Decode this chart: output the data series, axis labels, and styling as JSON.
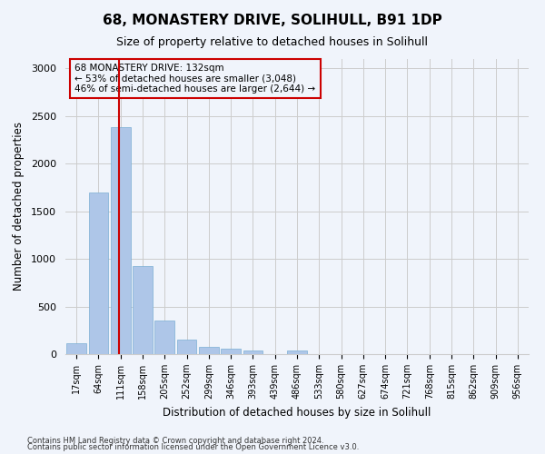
{
  "title": "68, MONASTERY DRIVE, SOLIHULL, B91 1DP",
  "subtitle": "Size of property relative to detached houses in Solihull",
  "xlabel": "Distribution of detached houses by size in Solihull",
  "ylabel": "Number of detached properties",
  "footnote1": "Contains HM Land Registry data © Crown copyright and database right 2024.",
  "footnote2": "Contains public sector information licensed under the Open Government Licence v3.0.",
  "bar_color": "#aec6e8",
  "bar_edge_color": "#7bafd4",
  "vline_color": "#cc0000",
  "bin_labels": [
    "17sqm",
    "64sqm",
    "111sqm",
    "158sqm",
    "205sqm",
    "252sqm",
    "299sqm",
    "346sqm",
    "393sqm",
    "439sqm",
    "486sqm",
    "533sqm",
    "580sqm",
    "627sqm",
    "674sqm",
    "721sqm",
    "768sqm",
    "815sqm",
    "862sqm",
    "909sqm",
    "956sqm"
  ],
  "bar_values": [
    110,
    1700,
    2380,
    930,
    350,
    150,
    75,
    55,
    40,
    0,
    40,
    0,
    0,
    0,
    0,
    0,
    0,
    0,
    0,
    0,
    0
  ],
  "property_label": "68 MONASTERY DRIVE: 132sqm",
  "annotation_line1": "← 53% of detached houses are smaller (3,048)",
  "annotation_line2": "46% of semi-detached houses are larger (2,644) →",
  "ylim": [
    0,
    3100
  ],
  "yticks": [
    0,
    500,
    1000,
    1500,
    2000,
    2500,
    3000
  ],
  "background_color": "#f0f4fb",
  "grid_color": "#cccccc",
  "title_fontsize": 11,
  "subtitle_fontsize": 9
}
